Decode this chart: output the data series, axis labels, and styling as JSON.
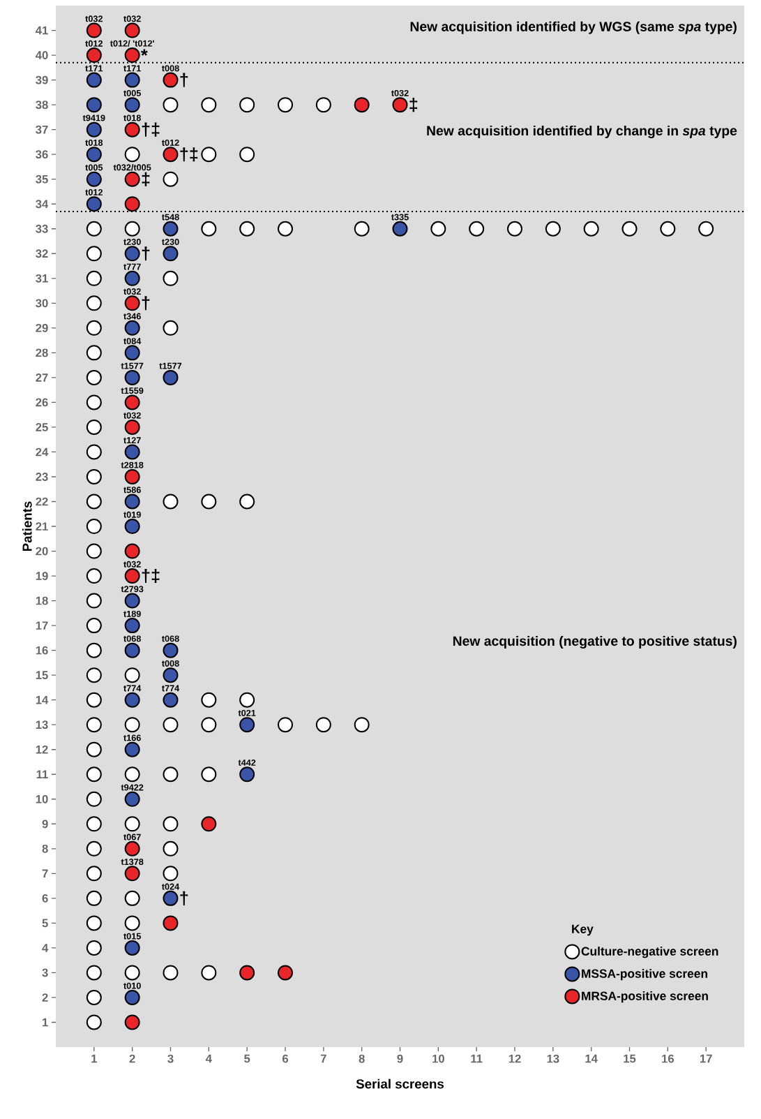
{
  "chart_data": {
    "type": "scatter",
    "xlabel": "Serial screens",
    "ylabel": "Patients",
    "xlim": [
      0,
      18
    ],
    "ylim": [
      0,
      42
    ],
    "xticks": [
      1,
      2,
      3,
      4,
      5,
      6,
      7,
      8,
      9,
      10,
      11,
      12,
      13,
      14,
      15,
      16,
      17
    ],
    "yticks": [
      1,
      2,
      3,
      4,
      5,
      6,
      7,
      8,
      9,
      10,
      11,
      12,
      13,
      14,
      15,
      16,
      17,
      18,
      19,
      20,
      21,
      22,
      23,
      24,
      25,
      26,
      27,
      28,
      29,
      30,
      31,
      32,
      33,
      34,
      35,
      36,
      37,
      38,
      39,
      40,
      41
    ],
    "grid": false,
    "legend": "bottom right",
    "legend_title": "Key",
    "marker": "circle",
    "series": [
      {
        "name": "Culture-negative screen",
        "color": "#ffffff",
        "x": [
          3,
          4,
          5,
          6,
          7,
          2,
          4,
          5,
          3,
          1,
          2,
          4,
          5,
          6,
          8,
          10,
          11,
          12,
          13,
          14,
          15,
          16,
          17,
          1,
          1,
          3,
          1,
          1,
          3,
          1,
          1,
          1,
          1,
          1,
          1,
          1,
          3,
          4,
          5,
          1,
          1,
          1,
          1,
          1,
          1,
          1,
          2,
          1,
          4,
          5,
          1,
          2,
          3,
          4,
          6,
          7,
          8,
          1,
          1,
          2,
          3,
          4,
          1,
          1,
          2,
          3,
          1,
          3,
          1,
          3,
          1,
          2,
          1,
          2,
          1,
          1,
          2,
          3,
          4,
          1,
          1
        ],
        "values": [
          38,
          38,
          38,
          38,
          38,
          36,
          36,
          36,
          35,
          33,
          33,
          33,
          33,
          33,
          33,
          33,
          33,
          33,
          33,
          33,
          33,
          33,
          33,
          32,
          31,
          31,
          30,
          29,
          29,
          28,
          27,
          26,
          25,
          24,
          23,
          22,
          22,
          22,
          22,
          21,
          20,
          19,
          18,
          17,
          16,
          15,
          15,
          14,
          14,
          14,
          13,
          13,
          13,
          13,
          13,
          13,
          13,
          12,
          11,
          11,
          11,
          11,
          10,
          9,
          9,
          9,
          8,
          8,
          7,
          7,
          6,
          6,
          5,
          5,
          4,
          3,
          3,
          3,
          3,
          2,
          1
        ]
      },
      {
        "name": "MSSA-positive screen",
        "color": "#3a55a8",
        "x": [
          1,
          2,
          1,
          2,
          1,
          1,
          1,
          1,
          3,
          9,
          2,
          3,
          2,
          2,
          2,
          2,
          3,
          2,
          2,
          2,
          2,
          2,
          2,
          3,
          3,
          2,
          3,
          5,
          2,
          5,
          2,
          3,
          2,
          2
        ],
        "values": [
          39,
          39,
          38,
          38,
          37,
          36,
          35,
          34,
          33,
          33,
          32,
          32,
          31,
          29,
          28,
          27,
          27,
          24,
          22,
          21,
          18,
          17,
          16,
          16,
          15,
          14,
          14,
          13,
          12,
          11,
          10,
          6,
          4,
          2
        ],
        "value_labels": [
          "t171",
          "t171",
          null,
          "t005",
          "t9419",
          "t018",
          "t005",
          "t012",
          "t548",
          "t335",
          "t230",
          "t230",
          "t777",
          "t346",
          "t084",
          "t1577",
          "t1577",
          "t127",
          "t586",
          "t019",
          "t2793",
          "t189",
          "t068",
          "t068",
          "t008",
          "t774",
          "t774",
          "t021",
          "t166",
          "t442",
          "t9422",
          "t024",
          "t015",
          "t010"
        ]
      },
      {
        "name": "MRSA-positive screen",
        "color": "#e8262a",
        "x": [
          1,
          2,
          1,
          2,
          3,
          8,
          9,
          2,
          3,
          2,
          2,
          2,
          2,
          2,
          2,
          2,
          2,
          4,
          2,
          2,
          3,
          5,
          6,
          2
        ],
        "values": [
          41,
          41,
          40,
          40,
          39,
          38,
          38,
          37,
          36,
          35,
          34,
          30,
          26,
          25,
          23,
          20,
          19,
          9,
          8,
          7,
          5,
          3,
          3,
          1
        ],
        "value_labels": [
          "t032",
          "t032",
          "t012",
          "t012/ 't012'",
          "t008",
          null,
          "t032",
          "t018",
          "t012",
          "t032/t005",
          null,
          "t032",
          "t1559",
          "t032",
          "t2818",
          null,
          "t032",
          null,
          "t067",
          "t1378",
          null,
          null,
          null,
          null
        ]
      }
    ],
    "ref_lines": [
      {
        "axis": "y",
        "value": 39.7,
        "line_style": "dotted"
      },
      {
        "axis": "y",
        "value": 33.7,
        "line_style": "dotted"
      }
    ],
    "annotations": [
      "New acquisition identified by WGS (same *spa* type)",
      "New acquisition identified by change in *spa* type",
      "New acquisition (negative to positive status)",
      {
        "text": "*",
        "x": 2,
        "y": 40
      },
      {
        "text": "†",
        "x": 3,
        "y": 39
      },
      {
        "text": "‡",
        "x": 9,
        "y": 38
      },
      {
        "text": "†‡",
        "x": 2,
        "y": 37
      },
      {
        "text": "†‡",
        "x": 3,
        "y": 36
      },
      {
        "text": "‡",
        "x": 2,
        "y": 35
      },
      {
        "text": "†",
        "x": 2,
        "y": 32
      },
      {
        "text": "†",
        "x": 2,
        "y": 30
      },
      {
        "text": "†‡",
        "x": 2,
        "y": 19
      },
      {
        "text": "†",
        "x": 3,
        "y": 6
      }
    ]
  }
}
